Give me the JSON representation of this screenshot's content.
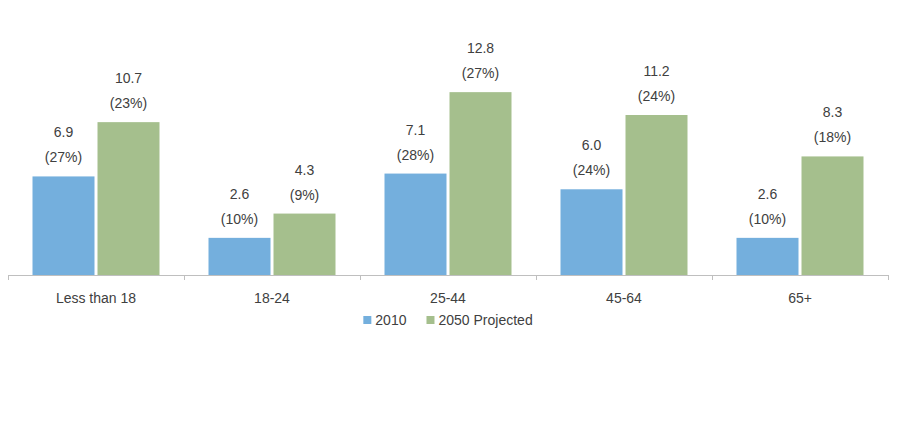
{
  "chart_data": {
    "type": "bar",
    "categories": [
      "Less than 18",
      "18-24",
      "25-44",
      "45-64",
      "65+"
    ],
    "series": [
      {
        "name": "2010",
        "color": "#74afdd",
        "values": [
          6.9,
          2.6,
          7.1,
          6.0,
          2.6
        ],
        "value_labels": [
          "6.9",
          "2.6",
          "7.1",
          "6.0",
          "2.6"
        ],
        "share_labels": [
          "(27%)",
          "(10%)",
          "(28%)",
          "(24%)",
          "(10%)"
        ]
      },
      {
        "name": "2050 Projected",
        "color": "#a5bf8d",
        "values": [
          10.7,
          4.3,
          12.8,
          11.2,
          8.3
        ],
        "share_labels": [
          "(23%)",
          "(9%)",
          "(27%)",
          "(24%)",
          "(18%)"
        ]
      }
    ],
    "ylim": [
      0,
      14
    ],
    "data_labels": true,
    "tick_labels": "x",
    "grid": false,
    "legend": "bottom"
  }
}
